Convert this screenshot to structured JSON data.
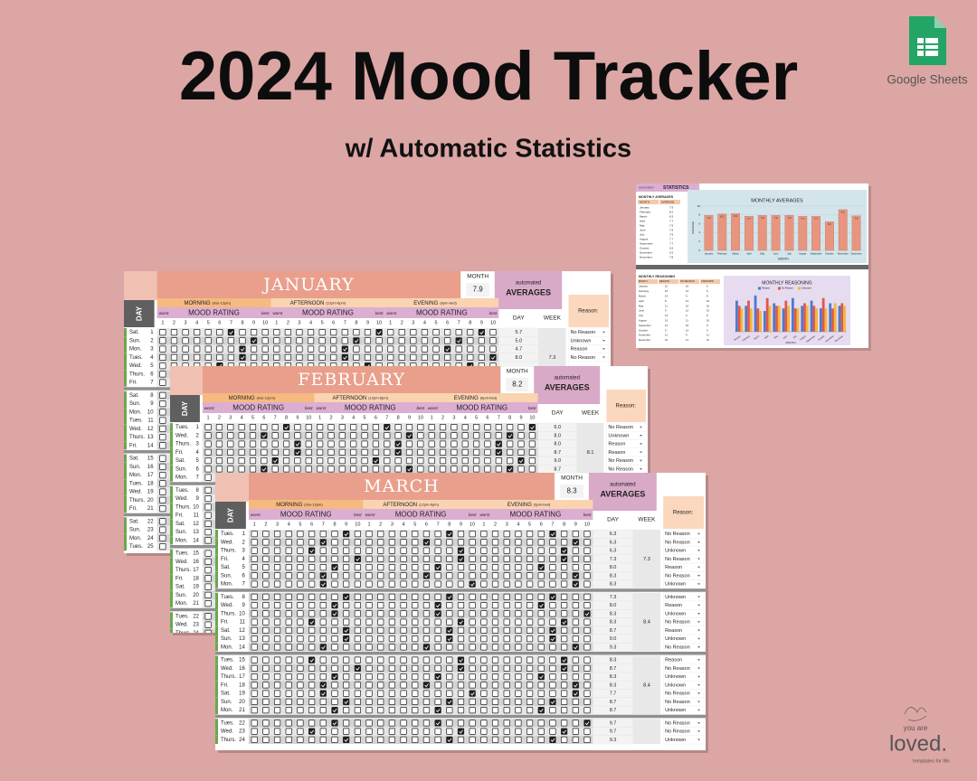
{
  "header": {
    "title": "2024 Mood Tracker",
    "subtitle": "w/ Automatic Statistics"
  },
  "brand": {
    "app": "Google Sheets",
    "logo_top": "you are",
    "logo_main": "loved.",
    "logo_tag": "templates for life."
  },
  "labels": {
    "month": "MONTH",
    "automated": "automated",
    "averages": "AVERAGES",
    "day": "DAY",
    "week": "WEEK",
    "reason": "Reason:",
    "mood_rating": "MOOD RATING",
    "worst": "worst",
    "best": "best",
    "sections": [
      {
        "name": "MORNING",
        "hours": "(rise-12pm)"
      },
      {
        "name": "AFTERNOON",
        "hours": "(12pm-6pm)"
      },
      {
        "name": "EVENING",
        "hours": "(6pm-bed)"
      }
    ],
    "scale": [
      1,
      2,
      3,
      4,
      5,
      6,
      7,
      8,
      9,
      10
    ]
  },
  "sheets": [
    {
      "month": "JANUARY",
      "month_avg": 7.9,
      "week_avgs": [
        "7.3"
      ],
      "rows": [
        {
          "day": "Sat.",
          "date": 1,
          "avg": "5.7",
          "reason": "No Reason"
        },
        {
          "day": "Sun.",
          "date": 2,
          "avg": "5.0",
          "reason": "Unknown"
        },
        {
          "day": "Mon.",
          "date": 3,
          "avg": "4.7",
          "reason": "Reason"
        },
        {
          "day": "Tues.",
          "date": 4,
          "avg": "8.0",
          "reason": "No Reason"
        },
        {
          "day": "Wed.",
          "date": 5
        },
        {
          "day": "Thurs.",
          "date": 6
        },
        {
          "day": "Fri.",
          "date": 7
        },
        {
          "day": "Sat.",
          "date": 8
        },
        {
          "day": "Sun.",
          "date": 9
        },
        {
          "day": "Mon.",
          "date": 10
        },
        {
          "day": "Tues.",
          "date": 11
        },
        {
          "day": "Wed.",
          "date": 12
        },
        {
          "day": "Thurs.",
          "date": 13
        },
        {
          "day": "Fri.",
          "date": 14
        },
        {
          "day": "Sat.",
          "date": 15
        },
        {
          "day": "Sun.",
          "date": 16
        },
        {
          "day": "Mon.",
          "date": 17
        },
        {
          "day": "Tues.",
          "date": 18
        },
        {
          "day": "Wed.",
          "date": 19
        },
        {
          "day": "Thurs.",
          "date": 20
        },
        {
          "day": "Fri.",
          "date": 21
        },
        {
          "day": "Sat.",
          "date": 22
        },
        {
          "day": "Sun.",
          "date": 23
        },
        {
          "day": "Mon.",
          "date": 24
        },
        {
          "day": "Tues.",
          "date": 25
        }
      ]
    },
    {
      "month": "FEBRUARY",
      "month_avg": 8.2,
      "week_avgs": [
        "8.1"
      ],
      "rows": [
        {
          "day": "Tues.",
          "date": 1,
          "avg": "6.0",
          "reason": "No Reason"
        },
        {
          "day": "Wed.",
          "date": 2,
          "avg": "8.0",
          "reason": "Unknown"
        },
        {
          "day": "Thurs.",
          "date": 3,
          "avg": "8.0",
          "reason": "Reason"
        },
        {
          "day": "Fri.",
          "date": 4,
          "avg": "8.7",
          "reason": "Reason"
        },
        {
          "day": "Sat.",
          "date": 5,
          "avg": "9.0",
          "reason": "No Reason"
        },
        {
          "day": "Sun.",
          "date": 6,
          "avg": "8.7",
          "reason": "No Reason"
        },
        {
          "day": "Mon.",
          "date": 7
        },
        {
          "day": "Tues.",
          "date": 8
        },
        {
          "day": "Wed.",
          "date": 9
        },
        {
          "day": "Thurs.",
          "date": 10
        },
        {
          "day": "Fri.",
          "date": 11
        },
        {
          "day": "Sat.",
          "date": 12
        },
        {
          "day": "Sun.",
          "date": 13
        },
        {
          "day": "Mon.",
          "date": 14
        },
        {
          "day": "Tues.",
          "date": 15
        },
        {
          "day": "Wed.",
          "date": 16
        },
        {
          "day": "Thurs.",
          "date": 17
        },
        {
          "day": "Fri.",
          "date": 18
        },
        {
          "day": "Sat.",
          "date": 19
        },
        {
          "day": "Sun.",
          "date": 20
        },
        {
          "day": "Mon.",
          "date": 21
        },
        {
          "day": "Tues.",
          "date": 22
        },
        {
          "day": "Wed.",
          "date": 23
        },
        {
          "day": "Thurs.",
          "date": 24
        }
      ]
    },
    {
      "month": "MARCH",
      "month_avg": 8.3,
      "week_avgs": [
        "7.3",
        "8.4",
        "8.4"
      ],
      "rows": [
        {
          "day": "Tues.",
          "date": 1,
          "avg": "6.3",
          "reason": "No Reason"
        },
        {
          "day": "Wed.",
          "date": 2,
          "avg": "6.3",
          "reason": "No Reason"
        },
        {
          "day": "Thurs.",
          "date": 3,
          "avg": "6.3",
          "reason": "Unknown"
        },
        {
          "day": "Fri.",
          "date": 4,
          "avg": "7.3",
          "reason": "No Reason"
        },
        {
          "day": "Sat.",
          "date": 5,
          "avg": "8.0",
          "reason": "Reason"
        },
        {
          "day": "Sun.",
          "date": 6,
          "avg": "8.3",
          "reason": "No Reason"
        },
        {
          "day": "Mon.",
          "date": 7,
          "avg": "8.3",
          "reason": "Unknown"
        },
        {
          "day": "Tues.",
          "date": 8,
          "avg": "7.3",
          "reason": "Unknown"
        },
        {
          "day": "Wed.",
          "date": 9,
          "avg": "8.0",
          "reason": "Reason"
        },
        {
          "day": "Thurs.",
          "date": 10,
          "avg": "8.3",
          "reason": "Unknown"
        },
        {
          "day": "Fri.",
          "date": 11,
          "avg": "8.3",
          "reason": "No Reason"
        },
        {
          "day": "Sat.",
          "date": 12,
          "avg": "8.7",
          "reason": "Reason"
        },
        {
          "day": "Sun.",
          "date": 13,
          "avg": "9.0",
          "reason": "Unknown"
        },
        {
          "day": "Mon.",
          "date": 14,
          "avg": "9.3",
          "reason": "No Reason"
        },
        {
          "day": "Tues.",
          "date": 15,
          "avg": "8.3",
          "reason": "Reason"
        },
        {
          "day": "Wed.",
          "date": 16,
          "avg": "8.7",
          "reason": "No Reason"
        },
        {
          "day": "Thurs.",
          "date": 17,
          "avg": "8.3",
          "reason": "Unknown"
        },
        {
          "day": "Fri.",
          "date": 18,
          "avg": "8.3",
          "reason": "Unknown"
        },
        {
          "day": "Sat.",
          "date": 19,
          "avg": "7.7",
          "reason": "No Reason"
        },
        {
          "day": "Sun.",
          "date": 20,
          "avg": "8.7",
          "reason": "No Reason"
        },
        {
          "day": "Mon.",
          "date": 21,
          "avg": "8.7",
          "reason": "Unknown"
        },
        {
          "day": "Tues.",
          "date": 22,
          "avg": "9.7",
          "reason": "No Reason"
        },
        {
          "day": "Wed.",
          "date": 23,
          "avg": "9.7",
          "reason": "No Reason"
        },
        {
          "day": "Thurs.",
          "date": 24,
          "avg": "9.3",
          "reason": "Unknown"
        }
      ]
    }
  ],
  "statistics": {
    "tab_small": "automated",
    "tab": "STATISTICS",
    "averages": {
      "type": "bar",
      "title": "MONTHLY AVERAGES",
      "table_title": "MONTHLY AVERAGES",
      "table_headers": [
        "MONTH",
        "AVERAGE"
      ],
      "x_label": "MONTH",
      "y_label": "AVERAGE",
      "categories": [
        "January",
        "February",
        "March",
        "April",
        "May",
        "June",
        "July",
        "August",
        "September",
        "October",
        "November",
        "December"
      ],
      "values": [
        7.9,
        8.2,
        8.3,
        7.7,
        7.9,
        7.9,
        7.9,
        7.7,
        7.7,
        6.5,
        9.2,
        7.8
      ],
      "color": "#e8957f",
      "ylim": [
        0,
        10
      ],
      "yticks": [
        0,
        2,
        4,
        6,
        8,
        10
      ]
    },
    "reasoning": {
      "type": "bar",
      "title": "MONTHLY REASONING",
      "table_title": "MONTHLY REASONING",
      "table_headers": [
        "MONTH",
        "REASON",
        "NO REASON",
        "UNKNOWN"
      ],
      "x_label": "MONTH",
      "ylim": [
        0,
        15
      ],
      "categories": [
        "January",
        "February",
        "March",
        "April",
        "May",
        "June",
        "July",
        "August",
        "September",
        "October",
        "November",
        "December"
      ],
      "series": [
        {
          "name": "Reason",
          "color": "#4a7bd0",
          "values": [
            12,
            10,
            14,
            8,
            11,
            9,
            13,
            10,
            12,
            9,
            11,
            10
          ]
        },
        {
          "name": "No Reason",
          "color": "#e0584a",
          "values": [
            10,
            12,
            9,
            13,
            10,
            12,
            9,
            11,
            10,
            13,
            9,
            11
          ]
        },
        {
          "name": "Unknown",
          "color": "#f2b93b",
          "values": [
            9,
            9,
            8,
            10,
            10,
            10,
            9,
            10,
            9,
            9,
            11,
            10
          ]
        }
      ]
    }
  }
}
